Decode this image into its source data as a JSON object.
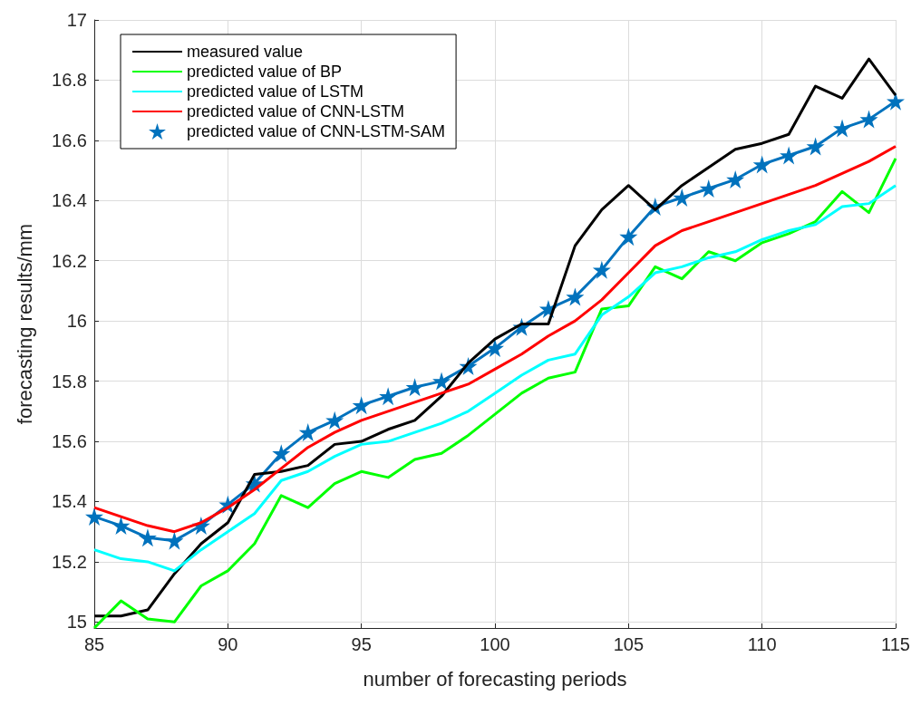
{
  "chart_data": {
    "type": "line",
    "xlabel": "number of forecasting periods",
    "ylabel": "forecasting results/mm",
    "x": [
      85,
      86,
      87,
      88,
      89,
      90,
      91,
      92,
      93,
      94,
      95,
      96,
      97,
      98,
      99,
      100,
      101,
      102,
      103,
      104,
      105,
      106,
      107,
      108,
      109,
      110,
      111,
      112,
      113,
      114,
      115
    ],
    "xlim": [
      85,
      115
    ],
    "xticks": [
      85,
      90,
      95,
      100,
      105,
      110,
      115
    ],
    "ylim": [
      14.98,
      17
    ],
    "yticks": [
      15,
      15.2,
      15.4,
      15.6,
      15.8,
      16,
      16.2,
      16.4,
      16.6,
      16.8,
      17
    ],
    "grid": true,
    "legend": "top left",
    "marker": "none",
    "line_style": "solid",
    "series": [
      {
        "name": "measured value",
        "color": "#000000",
        "values": [
          15.02,
          15.02,
          15.04,
          15.16,
          15.26,
          15.33,
          15.49,
          15.5,
          15.52,
          15.59,
          15.6,
          15.64,
          15.67,
          15.75,
          15.86,
          15.94,
          15.99,
          15.99,
          16.25,
          16.37,
          16.45,
          16.37,
          16.45,
          16.51,
          16.57,
          16.59,
          16.62,
          16.78,
          16.74,
          16.87,
          16.75
        ]
      },
      {
        "name": "predicted value of BP",
        "color": "#00ff00",
        "values": [
          14.98,
          15.07,
          15.01,
          15.0,
          15.12,
          15.17,
          15.26,
          15.42,
          15.38,
          15.46,
          15.5,
          15.48,
          15.54,
          15.56,
          15.62,
          15.69,
          15.76,
          15.81,
          15.83,
          16.04,
          16.05,
          16.18,
          16.14,
          16.23,
          16.2,
          16.26,
          16.29,
          16.33,
          16.43,
          16.36,
          16.54
        ]
      },
      {
        "name": "predicted value of LSTM",
        "color": "#00ffff",
        "values": [
          15.24,
          15.21,
          15.2,
          15.17,
          15.24,
          15.3,
          15.36,
          15.47,
          15.5,
          15.55,
          15.59,
          15.6,
          15.63,
          15.66,
          15.7,
          15.76,
          15.82,
          15.87,
          15.89,
          16.02,
          16.08,
          16.16,
          16.18,
          16.21,
          16.23,
          16.27,
          16.3,
          16.32,
          16.38,
          16.39,
          16.45
        ]
      },
      {
        "name": "predicted value of CNN-LSTM",
        "color": "#ff0000",
        "values": [
          15.38,
          15.35,
          15.32,
          15.3,
          15.33,
          15.38,
          15.44,
          15.51,
          15.58,
          15.63,
          15.67,
          15.7,
          15.73,
          15.76,
          15.79,
          15.84,
          15.89,
          15.95,
          16.0,
          16.07,
          16.16,
          16.25,
          16.3,
          16.33,
          16.36,
          16.39,
          16.42,
          16.45,
          16.49,
          16.53,
          16.58
        ]
      },
      {
        "name": "predicted value of CNN-LSTM-SAM",
        "color": "#0072bd",
        "marker": "star",
        "values": [
          15.35,
          15.32,
          15.28,
          15.27,
          15.32,
          15.39,
          15.46,
          15.56,
          15.63,
          15.67,
          15.72,
          15.75,
          15.78,
          15.8,
          15.85,
          15.91,
          15.98,
          16.04,
          16.08,
          16.17,
          16.28,
          16.38,
          16.41,
          16.44,
          16.47,
          16.52,
          16.55,
          16.58,
          16.64,
          16.67,
          16.73
        ]
      }
    ]
  }
}
